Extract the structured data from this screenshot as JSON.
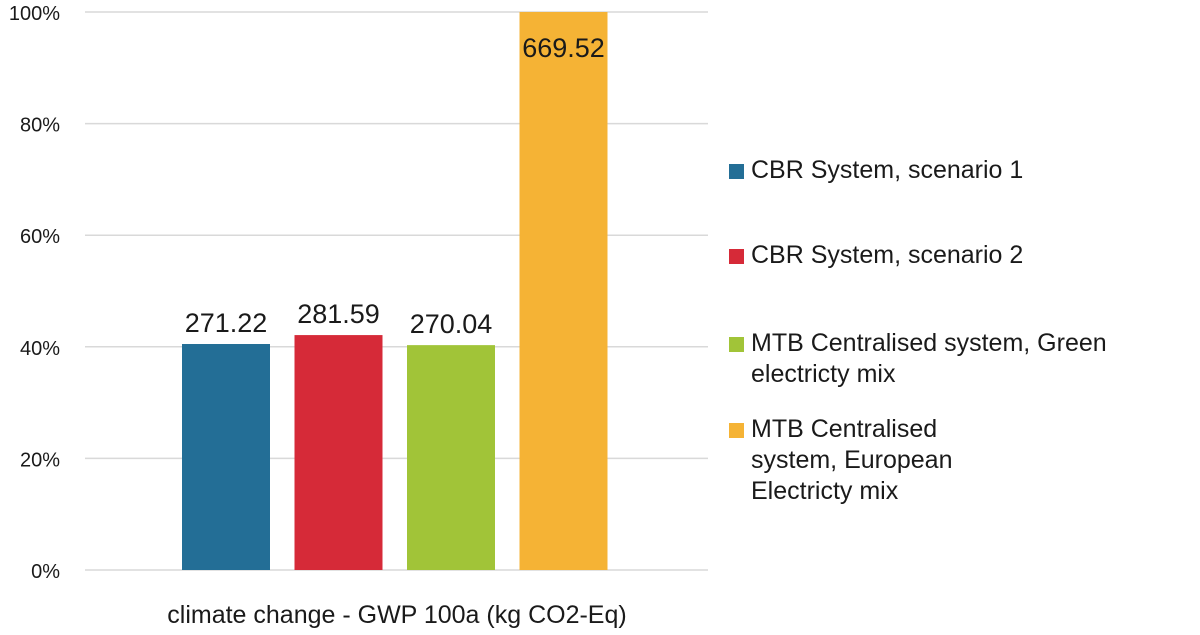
{
  "chart_data": {
    "type": "bar",
    "categories": [
      "climate change - GWP 100a (kg CO2-Eq)"
    ],
    "xlabel": "climate change - GWP 100a (kg CO2-Eq)",
    "ylabel": "",
    "ylim": [
      0,
      100
    ],
    "yticks": [
      "0%",
      "20%",
      "40%",
      "60%",
      "80%",
      "100%"
    ],
    "grid": true,
    "legend_position": "right",
    "series": [
      {
        "name": "CBR System, scenario 1",
        "percent": 40.5,
        "label": "271.22",
        "color": "#236e96"
      },
      {
        "name": "CBR System, scenario 2",
        "percent": 42.1,
        "label": "281.59",
        "color": "#d62a38"
      },
      {
        "name": "MTB Centralised system, Green electricty mix",
        "percent": 40.3,
        "label": "270.04",
        "color": "#a1c438"
      },
      {
        "name": "MTB Centralised system, European Electricty mix",
        "percent": 100,
        "label": "669.52",
        "color": "#f5b335"
      }
    ]
  },
  "legend": {
    "items": [
      {
        "label": "CBR System, scenario 1"
      },
      {
        "label": "CBR System, scenario 2"
      },
      {
        "label": "MTB Centralised system, Green electricty mix"
      },
      {
        "label": "MTB Centralised system, European Electricty mix"
      }
    ]
  }
}
